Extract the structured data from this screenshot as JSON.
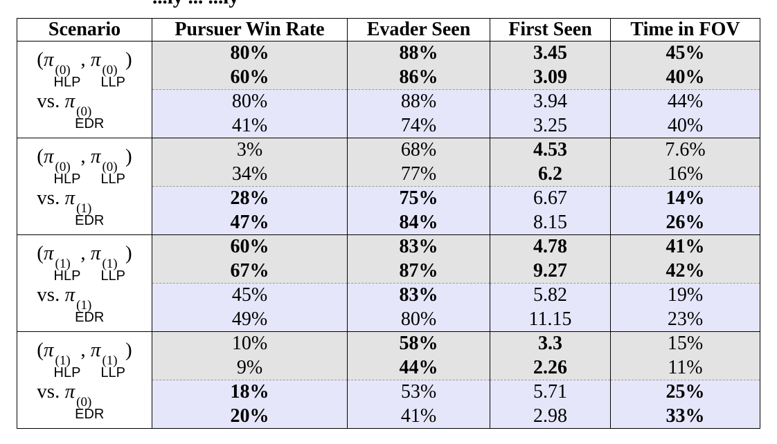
{
  "caption_fragment": "...ly ... ...ly",
  "columns": [
    "Scenario",
    "Pursuer Win Rate",
    "Evader Seen",
    "First Seen",
    "Time in FOV"
  ],
  "groups": [
    {
      "scenario": {
        "hlp_level": "(0)",
        "llp_level": "(0)",
        "edr_level": "(0)"
      },
      "rows": [
        {
          "bg": "gray",
          "cells": [
            {
              "v": "80%",
              "b": true
            },
            {
              "v": "88%",
              "b": true
            },
            {
              "v": "3.45",
              "b": true
            },
            {
              "v": "45%",
              "b": true
            }
          ]
        },
        {
          "bg": "gray",
          "cells": [
            {
              "v": "60%",
              "b": true
            },
            {
              "v": "86%",
              "b": true
            },
            {
              "v": "3.09",
              "b": true
            },
            {
              "v": "40%",
              "b": true
            }
          ]
        },
        {
          "bg": "blue",
          "cells": [
            {
              "v": "80%",
              "b": false
            },
            {
              "v": "88%",
              "b": false
            },
            {
              "v": "3.94",
              "b": false
            },
            {
              "v": "44%",
              "b": false
            }
          ]
        },
        {
          "bg": "blue",
          "cells": [
            {
              "v": "41%",
              "b": false
            },
            {
              "v": "74%",
              "b": false
            },
            {
              "v": "3.25",
              "b": false
            },
            {
              "v": "40%",
              "b": false
            }
          ]
        }
      ]
    },
    {
      "scenario": {
        "hlp_level": "(0)",
        "llp_level": "(0)",
        "edr_level": "(1)"
      },
      "rows": [
        {
          "bg": "gray",
          "cells": [
            {
              "v": "3%",
              "b": false
            },
            {
              "v": "68%",
              "b": false
            },
            {
              "v": "4.53",
              "b": true
            },
            {
              "v": "7.6%",
              "b": false
            }
          ]
        },
        {
          "bg": "gray",
          "cells": [
            {
              "v": "34%",
              "b": false
            },
            {
              "v": "77%",
              "b": false
            },
            {
              "v": "6.2",
              "b": true
            },
            {
              "v": "16%",
              "b": false
            }
          ]
        },
        {
          "bg": "blue",
          "cells": [
            {
              "v": "28%",
              "b": true
            },
            {
              "v": "75%",
              "b": true
            },
            {
              "v": "6.67",
              "b": false
            },
            {
              "v": "14%",
              "b": true
            }
          ]
        },
        {
          "bg": "blue",
          "cells": [
            {
              "v": "47%",
              "b": true
            },
            {
              "v": "84%",
              "b": true
            },
            {
              "v": "8.15",
              "b": false
            },
            {
              "v": "26%",
              "b": true
            }
          ]
        }
      ]
    },
    {
      "scenario": {
        "hlp_level": "(1)",
        "llp_level": "(1)",
        "edr_level": "(1)"
      },
      "rows": [
        {
          "bg": "gray",
          "cells": [
            {
              "v": "60%",
              "b": true
            },
            {
              "v": "83%",
              "b": true
            },
            {
              "v": "4.78",
              "b": true
            },
            {
              "v": "41%",
              "b": true
            }
          ]
        },
        {
          "bg": "gray",
          "cells": [
            {
              "v": "67%",
              "b": true
            },
            {
              "v": "87%",
              "b": true
            },
            {
              "v": "9.27",
              "b": true
            },
            {
              "v": "42%",
              "b": true
            }
          ]
        },
        {
          "bg": "blue",
          "cells": [
            {
              "v": "45%",
              "b": false
            },
            {
              "v": "83%",
              "b": true
            },
            {
              "v": "5.82",
              "b": false
            },
            {
              "v": "19%",
              "b": false
            }
          ]
        },
        {
          "bg": "blue",
          "cells": [
            {
              "v": "49%",
              "b": false
            },
            {
              "v": "80%",
              "b": false
            },
            {
              "v": "11.15",
              "b": false
            },
            {
              "v": "23%",
              "b": false
            }
          ]
        }
      ]
    },
    {
      "scenario": {
        "hlp_level": "(1)",
        "llp_level": "(1)",
        "edr_level": "(0)"
      },
      "rows": [
        {
          "bg": "gray",
          "cells": [
            {
              "v": "10%",
              "b": false
            },
            {
              "v": "58%",
              "b": true
            },
            {
              "v": "3.3",
              "b": true
            },
            {
              "v": "15%",
              "b": false
            }
          ]
        },
        {
          "bg": "gray",
          "cells": [
            {
              "v": "9%",
              "b": false
            },
            {
              "v": "44%",
              "b": true
            },
            {
              "v": "2.26",
              "b": true
            },
            {
              "v": "11%",
              "b": false
            }
          ]
        },
        {
          "bg": "blue",
          "cells": [
            {
              "v": "18%",
              "b": true
            },
            {
              "v": "53%",
              "b": false
            },
            {
              "v": "5.71",
              "b": false
            },
            {
              "v": "25%",
              "b": true
            }
          ]
        },
        {
          "bg": "blue",
          "cells": [
            {
              "v": "20%",
              "b": true
            },
            {
              "v": "41%",
              "b": false
            },
            {
              "v": "2.98",
              "b": false
            },
            {
              "v": "33%",
              "b": true
            }
          ]
        }
      ]
    }
  ],
  "labels": {
    "pi": "π",
    "hlp": "HLP",
    "llp": "LLP",
    "edr": "EDR",
    "vs": "vs."
  },
  "colors": {
    "gray_bg": "#e3e3e3",
    "blue_bg": "#e6e6fb",
    "dash_line": "#9a9a9a"
  }
}
